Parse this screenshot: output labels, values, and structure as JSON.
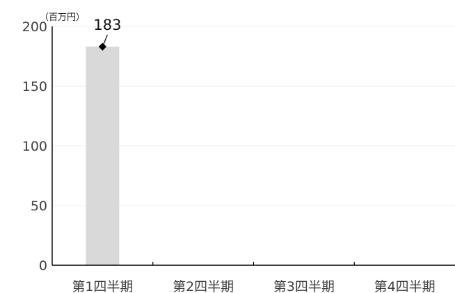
{
  "chart_data": {
    "type": "bar",
    "unit_label": "（百万円）",
    "categories": [
      "第1四半期",
      "第2四半期",
      "第3四半期",
      "第4四半期"
    ],
    "values": [
      183,
      null,
      null,
      null
    ],
    "data_labels": [
      "183",
      "",
      "",
      ""
    ],
    "ylim": [
      0,
      200
    ],
    "yticks": [
      0,
      50,
      100,
      150,
      200
    ],
    "ytick_labels": [
      "0",
      "50",
      "100",
      "150",
      "200"
    ],
    "grid": true,
    "colors": {
      "bar": "#d9d9d9",
      "grid": "#eeeeee",
      "axis": "#000000",
      "marker": "#000000"
    }
  }
}
